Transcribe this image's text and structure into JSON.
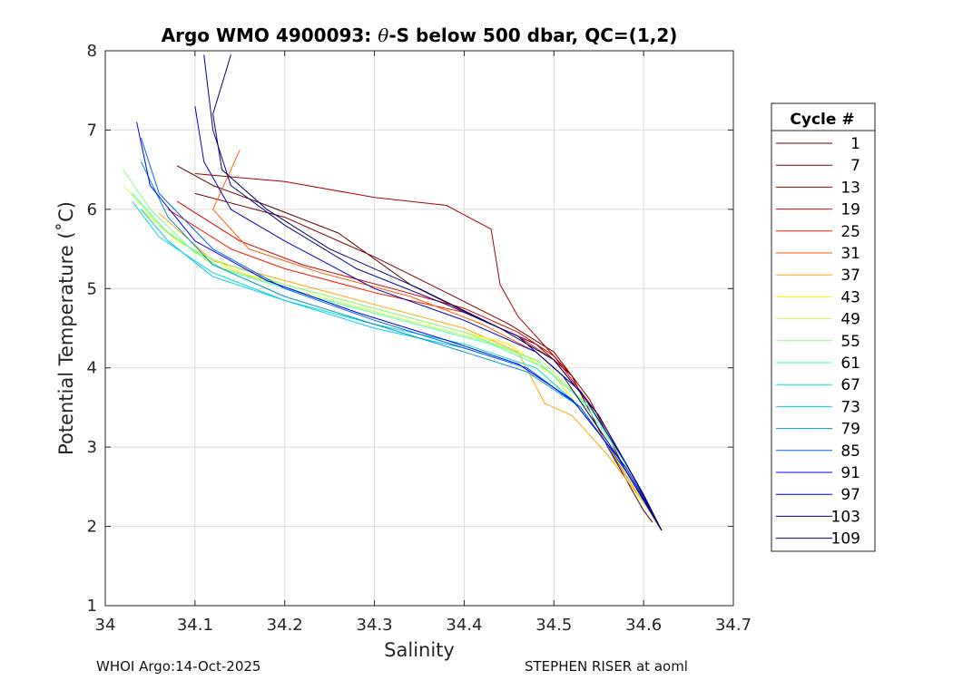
{
  "chart_data": {
    "type": "line",
    "title": "Argo WMO 4900093: θ-S below 500 dbar,  QC=(1,2)",
    "title_prefix": "Argo WMO 4900093: ",
    "title_theta": "θ",
    "title_suffix": "-S below 500 dbar,  QC=(1,2)",
    "xlabel": "Salinity",
    "ylabel": "Potential Temperature (˚C)",
    "xlim": [
      34,
      34.7
    ],
    "ylim": [
      1,
      8
    ],
    "x_ticks": [
      "34",
      "34.1",
      "34.2",
      "34.3",
      "34.4",
      "34.5",
      "34.6",
      "34.7"
    ],
    "y_ticks": [
      "1",
      "2",
      "3",
      "4",
      "5",
      "6",
      "7",
      "8"
    ],
    "grid": true,
    "legend": {
      "title": "Cycle #",
      "position": "right-outside",
      "entries": [
        {
          "label": "1",
          "color": "#5a0000"
        },
        {
          "label": "7",
          "color": "#800000"
        },
        {
          "label": "13",
          "color": "#a80000"
        },
        {
          "label": "19",
          "color": "#d40000"
        },
        {
          "label": "25",
          "color": "#f51a00"
        },
        {
          "label": "31",
          "color": "#ff5a00"
        },
        {
          "label": "37",
          "color": "#ffa500"
        },
        {
          "label": "43",
          "color": "#ffee00"
        },
        {
          "label": "49",
          "color": "#c0ff3f"
        },
        {
          "label": "55",
          "color": "#7fff7f"
        },
        {
          "label": "61",
          "color": "#3fffbf"
        },
        {
          "label": "67",
          "color": "#00e0c8"
        },
        {
          "label": "73",
          "color": "#00c8ff"
        },
        {
          "label": "79",
          "color": "#0096c8"
        },
        {
          "label": "85",
          "color": "#0064ff"
        },
        {
          "label": "91",
          "color": "#0000ff"
        },
        {
          "label": "97",
          "color": "#0000c0"
        },
        {
          "label": "103",
          "color": "#000090"
        },
        {
          "label": "109",
          "color": "#000070"
        }
      ]
    },
    "series": [
      {
        "name": "1",
        "color": "#5a0000",
        "points": [
          [
            34.08,
            6.55
          ],
          [
            34.12,
            6.3
          ],
          [
            34.18,
            6.05
          ],
          [
            34.26,
            5.7
          ],
          [
            34.34,
            5.05
          ],
          [
            34.42,
            4.6
          ],
          [
            34.48,
            4.3
          ],
          [
            34.52,
            3.9
          ],
          [
            34.56,
            3.0
          ],
          [
            34.6,
            2.2
          ],
          [
            34.61,
            2.05
          ]
        ]
      },
      {
        "name": "7",
        "color": "#800000",
        "points": [
          [
            34.1,
            6.2
          ],
          [
            34.2,
            5.9
          ],
          [
            34.3,
            5.4
          ],
          [
            34.38,
            4.95
          ],
          [
            34.45,
            4.55
          ],
          [
            34.5,
            4.2
          ],
          [
            34.54,
            3.6
          ],
          [
            34.58,
            2.7
          ],
          [
            34.62,
            1.95
          ]
        ]
      },
      {
        "name": "13",
        "color": "#a80000",
        "points": [
          [
            34.1,
            6.45
          ],
          [
            34.2,
            6.35
          ],
          [
            34.3,
            6.15
          ],
          [
            34.38,
            6.05
          ],
          [
            34.43,
            5.75
          ],
          [
            34.44,
            5.05
          ],
          [
            34.46,
            4.65
          ],
          [
            34.48,
            4.4
          ],
          [
            34.52,
            3.9
          ],
          [
            34.56,
            3.0
          ],
          [
            34.62,
            1.95
          ]
        ]
      },
      {
        "name": "19",
        "color": "#d40000",
        "points": [
          [
            34.08,
            6.1
          ],
          [
            34.15,
            5.6
          ],
          [
            34.22,
            5.3
          ],
          [
            34.32,
            5.0
          ],
          [
            34.4,
            4.75
          ],
          [
            34.46,
            4.45
          ],
          [
            34.5,
            4.15
          ],
          [
            34.55,
            3.4
          ],
          [
            34.6,
            2.4
          ],
          [
            34.62,
            1.95
          ]
        ]
      },
      {
        "name": "25",
        "color": "#f51a00",
        "points": [
          [
            34.07,
            6.0
          ],
          [
            34.14,
            5.5
          ],
          [
            34.2,
            5.25
          ],
          [
            34.3,
            4.95
          ],
          [
            34.4,
            4.7
          ],
          [
            34.46,
            4.4
          ],
          [
            34.5,
            4.1
          ],
          [
            34.55,
            3.4
          ],
          [
            34.6,
            2.4
          ],
          [
            34.62,
            1.95
          ]
        ]
      },
      {
        "name": "31",
        "color": "#ff5a00",
        "points": [
          [
            34.15,
            6.75
          ],
          [
            34.12,
            6.0
          ],
          [
            34.16,
            5.5
          ],
          [
            34.24,
            5.2
          ],
          [
            34.34,
            4.9
          ],
          [
            34.42,
            4.55
          ],
          [
            34.48,
            4.2
          ],
          [
            34.53,
            3.7
          ],
          [
            34.58,
            2.8
          ],
          [
            34.62,
            1.95
          ]
        ]
      },
      {
        "name": "37",
        "color": "#ffa500",
        "points": [
          [
            34.06,
            5.95
          ],
          [
            34.12,
            5.35
          ],
          [
            34.2,
            5.1
          ],
          [
            34.3,
            4.8
          ],
          [
            34.4,
            4.5
          ],
          [
            34.46,
            4.2
          ],
          [
            34.49,
            3.55
          ],
          [
            34.52,
            3.4
          ],
          [
            34.56,
            2.9
          ],
          [
            34.6,
            2.3
          ],
          [
            34.62,
            1.95
          ]
        ]
      },
      {
        "name": "43",
        "color": "#ffee00",
        "points": [
          [
            34.04,
            6.0
          ],
          [
            34.08,
            5.6
          ],
          [
            34.15,
            5.2
          ],
          [
            34.25,
            4.9
          ],
          [
            34.35,
            4.6
          ],
          [
            34.45,
            4.3
          ],
          [
            34.5,
            3.9
          ],
          [
            34.55,
            3.2
          ],
          [
            34.6,
            2.3
          ],
          [
            34.62,
            1.95
          ]
        ]
      },
      {
        "name": "49",
        "color": "#c0ff3f",
        "points": [
          [
            34.02,
            6.3
          ],
          [
            34.06,
            5.8
          ],
          [
            34.12,
            5.3
          ],
          [
            34.22,
            4.95
          ],
          [
            34.32,
            4.65
          ],
          [
            34.42,
            4.35
          ],
          [
            34.49,
            4.05
          ],
          [
            34.54,
            3.5
          ],
          [
            34.58,
            2.8
          ],
          [
            34.62,
            1.95
          ]
        ]
      },
      {
        "name": "55",
        "color": "#7fff7f",
        "points": [
          [
            34.02,
            6.5
          ],
          [
            34.05,
            6.0
          ],
          [
            34.1,
            5.45
          ],
          [
            34.2,
            5.05
          ],
          [
            34.3,
            4.75
          ],
          [
            34.4,
            4.45
          ],
          [
            34.48,
            4.1
          ],
          [
            34.53,
            3.6
          ],
          [
            34.58,
            2.8
          ],
          [
            34.62,
            1.95
          ]
        ]
      },
      {
        "name": "61",
        "color": "#3fffbf",
        "points": [
          [
            34.03,
            6.2
          ],
          [
            34.07,
            5.7
          ],
          [
            34.13,
            5.25
          ],
          [
            34.23,
            4.9
          ],
          [
            34.33,
            4.6
          ],
          [
            34.43,
            4.3
          ],
          [
            34.49,
            4.0
          ],
          [
            34.54,
            3.5
          ],
          [
            34.59,
            2.6
          ],
          [
            34.62,
            1.95
          ]
        ]
      },
      {
        "name": "67",
        "color": "#00e0c8",
        "points": [
          [
            34.03,
            6.1
          ],
          [
            34.06,
            5.65
          ],
          [
            34.12,
            5.2
          ],
          [
            34.2,
            4.85
          ],
          [
            34.3,
            4.55
          ],
          [
            34.4,
            4.3
          ],
          [
            34.48,
            4.0
          ],
          [
            34.53,
            3.5
          ],
          [
            34.58,
            2.7
          ],
          [
            34.62,
            1.95
          ]
        ]
      },
      {
        "name": "73",
        "color": "#00c8ff",
        "points": [
          [
            34.04,
            6.0
          ],
          [
            34.07,
            5.6
          ],
          [
            34.12,
            5.15
          ],
          [
            34.2,
            4.85
          ],
          [
            34.3,
            4.5
          ],
          [
            34.4,
            4.25
          ],
          [
            34.47,
            4.0
          ],
          [
            34.53,
            3.5
          ],
          [
            34.58,
            2.7
          ],
          [
            34.62,
            1.95
          ]
        ]
      },
      {
        "name": "79",
        "color": "#0096c8",
        "points": [
          [
            34.04,
            6.6
          ],
          [
            34.07,
            5.9
          ],
          [
            34.12,
            5.3
          ],
          [
            34.2,
            4.9
          ],
          [
            34.3,
            4.55
          ],
          [
            34.4,
            4.2
          ],
          [
            34.47,
            3.95
          ],
          [
            34.53,
            3.5
          ],
          [
            34.58,
            2.7
          ],
          [
            34.62,
            1.95
          ]
        ]
      },
      {
        "name": "85",
        "color": "#0064ff",
        "points": [
          [
            34.04,
            6.9
          ],
          [
            34.06,
            6.2
          ],
          [
            34.12,
            5.5
          ],
          [
            34.2,
            5.0
          ],
          [
            34.3,
            4.6
          ],
          [
            34.4,
            4.25
          ],
          [
            34.47,
            4.0
          ],
          [
            34.53,
            3.5
          ],
          [
            34.58,
            2.7
          ],
          [
            34.62,
            1.95
          ]
        ]
      },
      {
        "name": "91",
        "color": "#0000ff",
        "points": [
          [
            34.035,
            7.1
          ],
          [
            34.05,
            6.3
          ],
          [
            34.1,
            5.6
          ],
          [
            34.18,
            5.1
          ],
          [
            34.28,
            4.7
          ],
          [
            34.38,
            4.35
          ],
          [
            34.46,
            4.05
          ],
          [
            34.52,
            3.6
          ],
          [
            34.58,
            2.75
          ],
          [
            34.62,
            1.95
          ]
        ]
      },
      {
        "name": "97",
        "color": "#0000c0",
        "points": [
          [
            34.1,
            7.3
          ],
          [
            34.11,
            6.6
          ],
          [
            34.14,
            6.0
          ],
          [
            34.2,
            5.6
          ],
          [
            34.3,
            5.0
          ],
          [
            34.4,
            4.6
          ],
          [
            34.48,
            4.2
          ],
          [
            34.53,
            3.7
          ],
          [
            34.58,
            2.8
          ],
          [
            34.62,
            1.95
          ]
        ]
      },
      {
        "name": "103",
        "color": "#000090",
        "points": [
          [
            34.11,
            7.95
          ],
          [
            34.12,
            7.0
          ],
          [
            34.14,
            6.3
          ],
          [
            34.2,
            5.8
          ],
          [
            34.28,
            5.25
          ],
          [
            34.38,
            4.8
          ],
          [
            34.46,
            4.4
          ],
          [
            34.51,
            3.9
          ],
          [
            34.57,
            2.9
          ],
          [
            34.62,
            1.95
          ]
        ]
      },
      {
        "name": "109",
        "color": "#000070",
        "points": [
          [
            34.14,
            7.95
          ],
          [
            34.12,
            7.2
          ],
          [
            34.13,
            6.5
          ],
          [
            34.18,
            6.0
          ],
          [
            34.25,
            5.5
          ],
          [
            34.35,
            5.0
          ],
          [
            34.44,
            4.5
          ],
          [
            34.5,
            4.1
          ],
          [
            34.55,
            3.4
          ],
          [
            34.6,
            2.4
          ],
          [
            34.62,
            1.95
          ]
        ]
      }
    ]
  },
  "footer": {
    "left": "WHOI Argo:14-Oct-2025",
    "right": "STEPHEN RISER at aoml"
  }
}
